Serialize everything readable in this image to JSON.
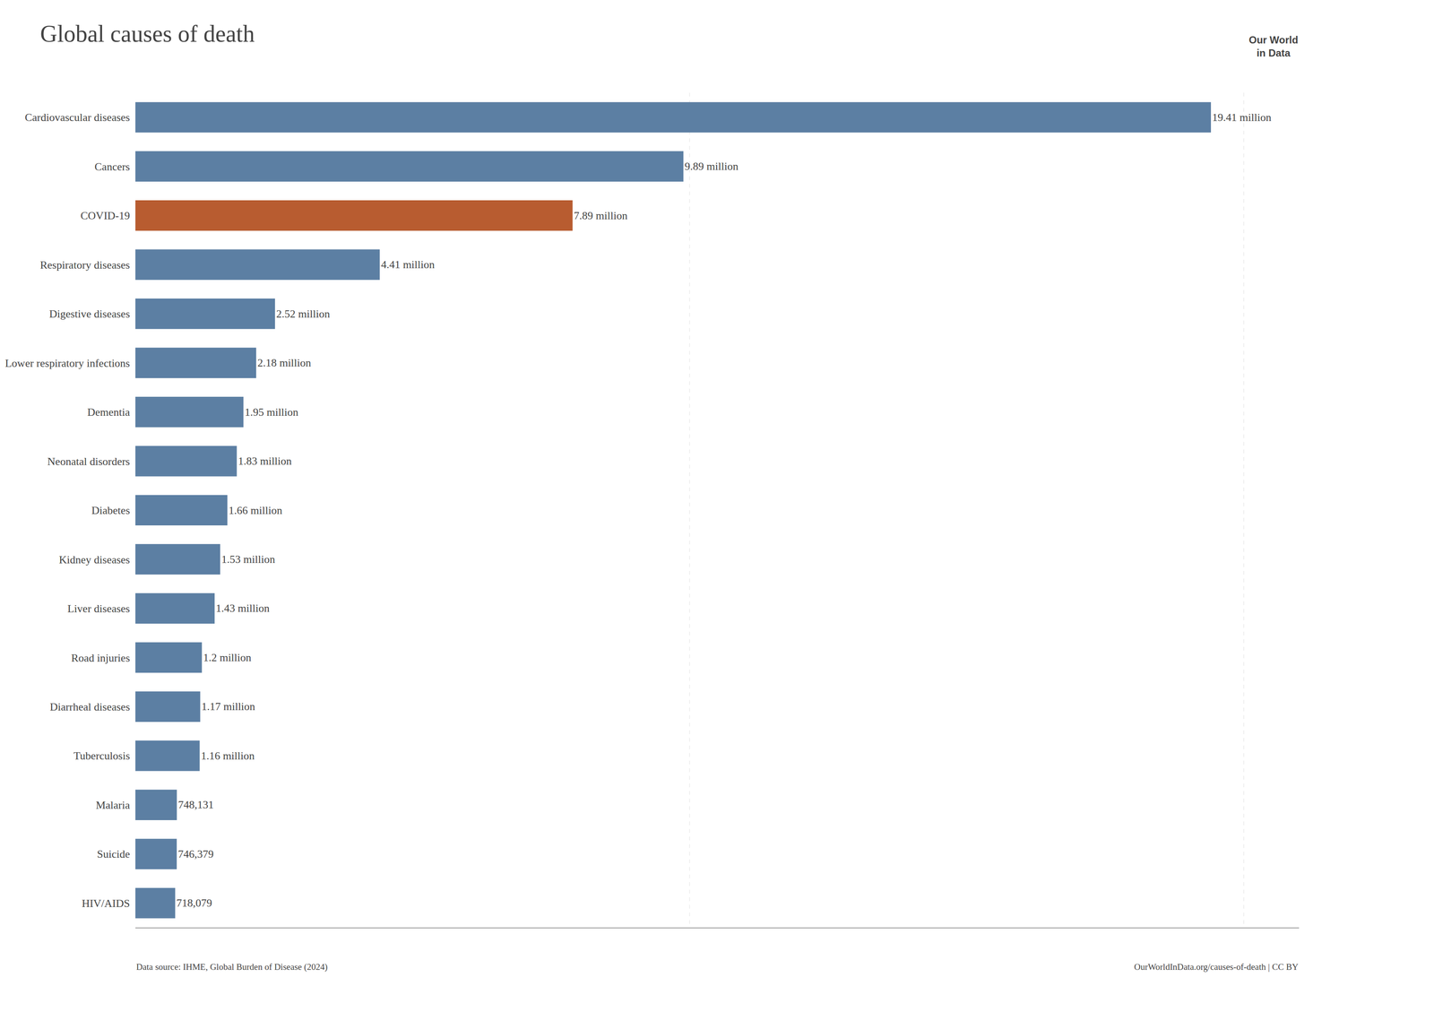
{
  "chart_data": {
    "type": "bar",
    "orientation": "horizontal",
    "title": "Global causes of death",
    "categories": [
      "Cardiovascular diseases",
      "Cancers",
      "COVID-19",
      "Respiratory diseases",
      "Digestive diseases",
      "Lower respiratory infections",
      "Dementia",
      "Neonatal disorders",
      "Diabetes",
      "Kidney diseases",
      "Liver diseases",
      "Road injuries",
      "Diarrheal diseases",
      "Tuberculosis",
      "Malaria",
      "Suicide",
      "HIV/AIDS"
    ],
    "values": [
      19410000,
      9890000,
      7890000,
      4410000,
      2520000,
      2180000,
      1950000,
      1830000,
      1660000,
      1530000,
      1430000,
      1200000,
      1170000,
      1160000,
      748131,
      746379,
      718079
    ],
    "value_labels": [
      "19.41 million",
      "9.89 million",
      "7.89 million",
      "4.41 million",
      "2.52 million",
      "2.18 million",
      "1.95 million",
      "1.83 million",
      "1.66 million",
      "1.53 million",
      "1.43 million",
      "1.2 million",
      "1.17 million",
      "1.16 million",
      "748,131",
      "746,379",
      "718,079"
    ],
    "data_labels": true,
    "colors": [
      "#5C7FA3",
      "#5C7FA3",
      "#B85C30",
      "#5C7FA3",
      "#5C7FA3",
      "#5C7FA3",
      "#5C7FA3",
      "#5C7FA3",
      "#5C7FA3",
      "#5C7FA3",
      "#5C7FA3",
      "#5C7FA3",
      "#5C7FA3",
      "#5C7FA3",
      "#5C7FA3",
      "#5C7FA3",
      "#5C7FA3"
    ],
    "xlim": [
      0,
      21000000
    ],
    "xticks": [
      10000000,
      20000000
    ],
    "grid": true,
    "tick_labels": "y",
    "annotations": [
      "Data source: IHME, Global Burden of Disease (2024)",
      "OurWorldInData.org/causes-of-death | CC BY",
      "Our World",
      "in Data"
    ]
  }
}
